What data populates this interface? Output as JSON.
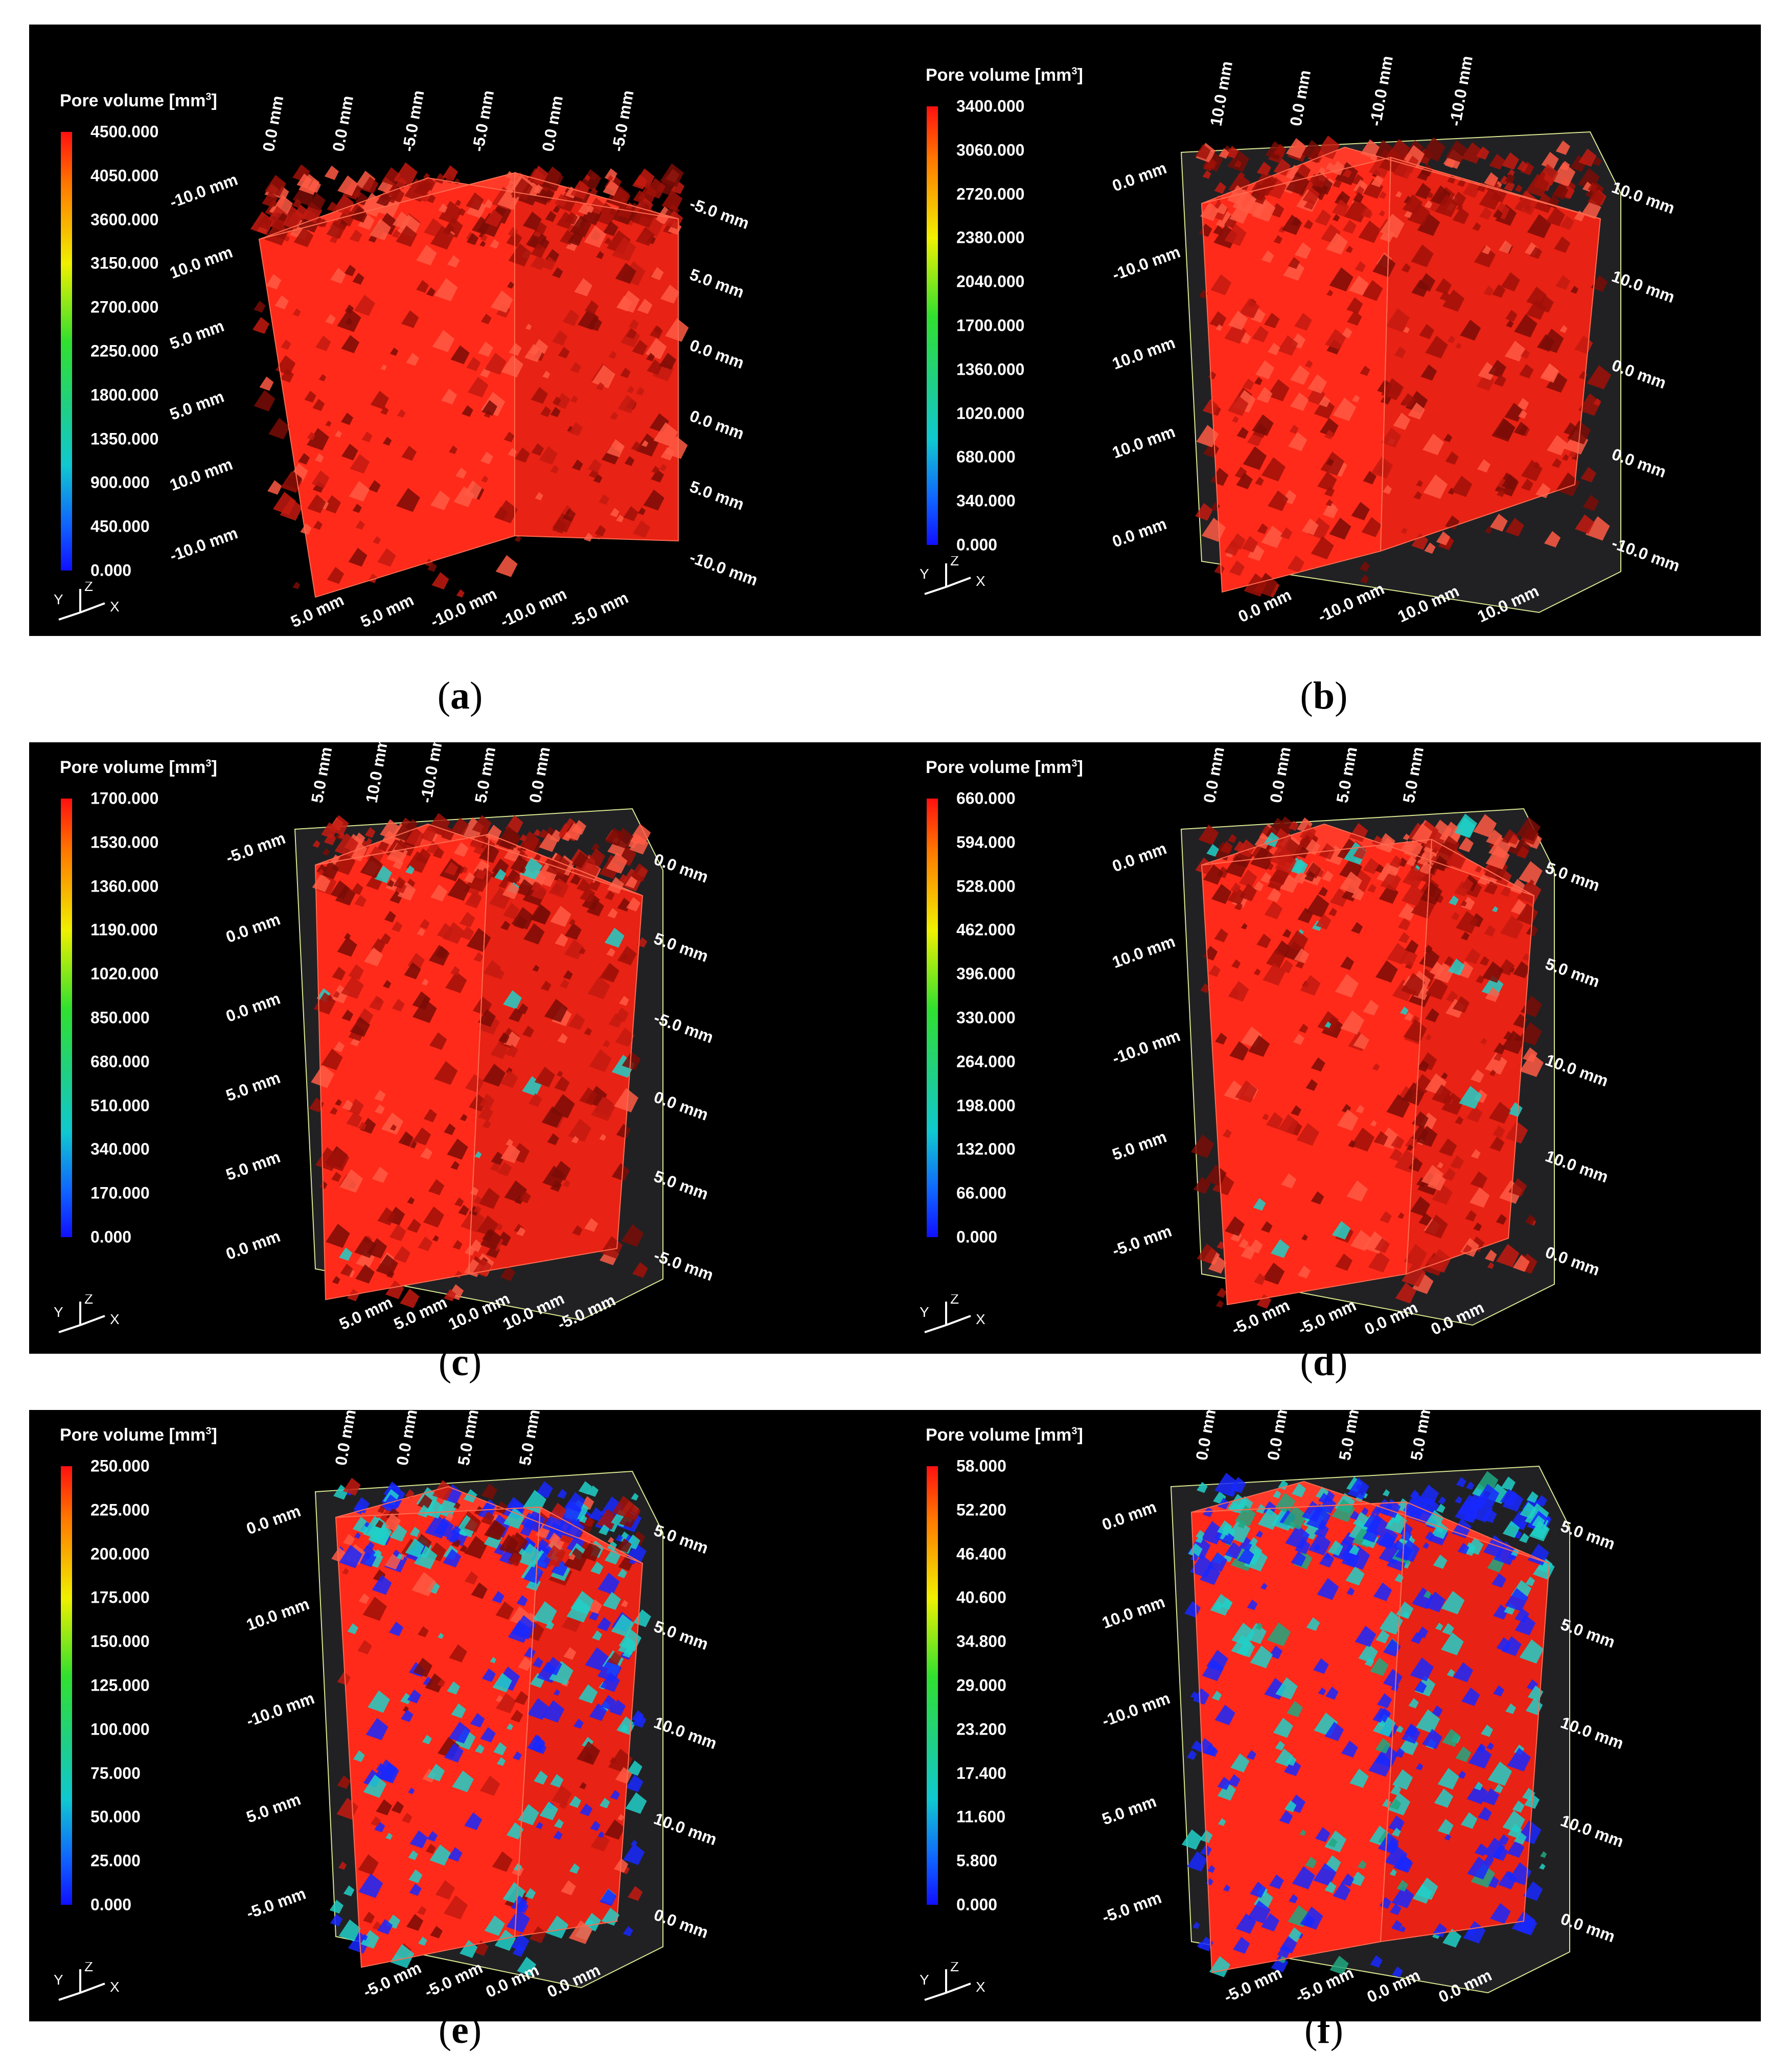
{
  "panels": [
    {
      "id": "a",
      "caption": "a",
      "legend": {
        "title": "Pore volume [mm",
        "title_sup": "3",
        "title_end": "]",
        "ticks": [
          "4500.000",
          "4050.000",
          "3600.000",
          "3150.000",
          "2700.000",
          "2250.000",
          "1800.000",
          "1350.000",
          "900.000",
          "450.000",
          "0.000"
        ]
      },
      "axes": [
        "-10.0 mm",
        "-5.0 mm",
        "0.0 mm",
        "5.0 mm",
        "10.0 mm",
        "5.0 mm",
        "0.0 mm",
        "5.0 mm",
        "5.0 mm",
        "0.0 mm",
        "-5.0 mm",
        "-10.0 mm",
        "5.0 mm",
        "0.0 mm",
        "-5.0 mm",
        "-10.0 mm",
        "10.0 mm",
        "5.0 mm",
        "0.0 mm",
        "-5.0 mm",
        "-10.0 mm",
        "-10.0 mm",
        "-5.0 mm"
      ]
    },
    {
      "id": "b",
      "caption": "b",
      "legend": {
        "title": "Pore volume [mm",
        "title_sup": "3",
        "title_end": "]",
        "ticks": [
          "3400.000",
          "3060.000",
          "2720.000",
          "2380.000",
          "2040.000",
          "1700.000",
          "1360.000",
          "1020.000",
          "680.000",
          "340.000",
          "0.000"
        ]
      },
      "axes": [
        "0.0 mm",
        "10.0 mm",
        "10.0 mm",
        "0.0 mm",
        "-10.0 mm",
        "10.0 mm",
        "0.0 mm",
        "-10.0 mm",
        "10.0 mm",
        "0.0 mm",
        "-10.0 mm",
        "10.0 mm",
        "10.0 mm",
        "0.0 mm",
        "-10.0 mm",
        "10.0 mm",
        "0.0 mm",
        "-10.0 mm"
      ]
    },
    {
      "id": "c",
      "caption": "c",
      "legend": {
        "title": "Pore volume [mm",
        "title_sup": "3",
        "title_end": "]",
        "ticks": [
          "1700.000",
          "1530.000",
          "1360.000",
          "1190.000",
          "1020.000",
          "850.000",
          "680.000",
          "510.000",
          "340.000",
          "170.000",
          "0.000"
        ]
      },
      "axes": [
        "-5.0 mm",
        "0.0 mm",
        "5.0 mm",
        "5.0 mm",
        "0.0 mm",
        "5.0 mm",
        "10.0 mm",
        "5.0 mm",
        "0.0 mm",
        "-5.0 mm",
        "-10.0 mm",
        "10.0 mm",
        "5.0 mm",
        "0.0 mm",
        "5.0 mm",
        "10.0 mm",
        "5.0 mm",
        "5.0 mm",
        "0.0 mm",
        "-5.0 mm",
        "0.0 mm",
        "-5.0 mm"
      ]
    },
    {
      "id": "d",
      "caption": "d",
      "legend": {
        "title": "Pore volume [mm",
        "title_sup": "3",
        "title_end": "]",
        "ticks": [
          "660.000",
          "594.000",
          "528.000",
          "462.000",
          "396.000",
          "330.000",
          "264.000",
          "198.000",
          "132.000",
          "66.000",
          "0.000"
        ]
      },
      "axes": [
        "0.0 mm",
        "5.0 mm",
        "0.0 mm",
        "-5.0 mm",
        "10.0 mm",
        "5.0 mm",
        "0.0 mm",
        "-5.0 mm",
        "-10.0 mm",
        "10.0 mm",
        "5.0 mm",
        "0.0 mm",
        "5.0 mm",
        "10.0 mm",
        "5.0 mm",
        "0.0 mm",
        "-5.0 mm",
        "0.0 mm"
      ]
    },
    {
      "id": "e",
      "caption": "e",
      "legend": {
        "title": "Pore volume [mm",
        "title_sup": "3",
        "title_end": "]",
        "ticks": [
          "250.000",
          "225.000",
          "200.000",
          "175.000",
          "150.000",
          "125.000",
          "100.000",
          "75.000",
          "50.000",
          "25.000",
          "0.000"
        ]
      },
      "axes": [
        "0.0 mm",
        "5.0 mm",
        "0.0 mm",
        "-5.0 mm",
        "10.0 mm",
        "5.0 mm",
        "0.0 mm",
        "-5.0 mm",
        "-10.0 mm",
        "10.0 mm",
        "5.0 mm",
        "0.0 mm",
        "5.0 mm",
        "10.0 mm",
        "5.0 mm",
        "0.0 mm",
        "-5.0 mm",
        "0.0 mm"
      ]
    },
    {
      "id": "f",
      "caption": "f",
      "legend": {
        "title": "Pore volume [mm",
        "title_sup": "3",
        "title_end": "]",
        "ticks": [
          "58.000",
          "52.200",
          "46.400",
          "40.600",
          "34.800",
          "29.000",
          "23.200",
          "17.400",
          "11.600",
          "5.800",
          "0.000"
        ]
      },
      "axes": [
        "0.0 mm",
        "5.0 mm",
        "0.0 mm",
        "-5.0 mm",
        "10.0 mm",
        "5.0 mm",
        "0.0 mm",
        "-5.0 mm",
        "-10.0 mm",
        "10.0 mm",
        "5.0 mm",
        "0.0 mm",
        "5.0 mm",
        "10.0 mm",
        "5.0 mm",
        "0.0 mm",
        "-5.0 mm",
        "0.0 mm"
      ]
    }
  ],
  "triad": {
    "y": "Y",
    "z": "Z",
    "x": "X"
  },
  "colors": {
    "pore_high": "#ff2a1a",
    "pore_low": "#1828ff",
    "pore_mid": "#20d0c8",
    "box": "#d8e890"
  }
}
